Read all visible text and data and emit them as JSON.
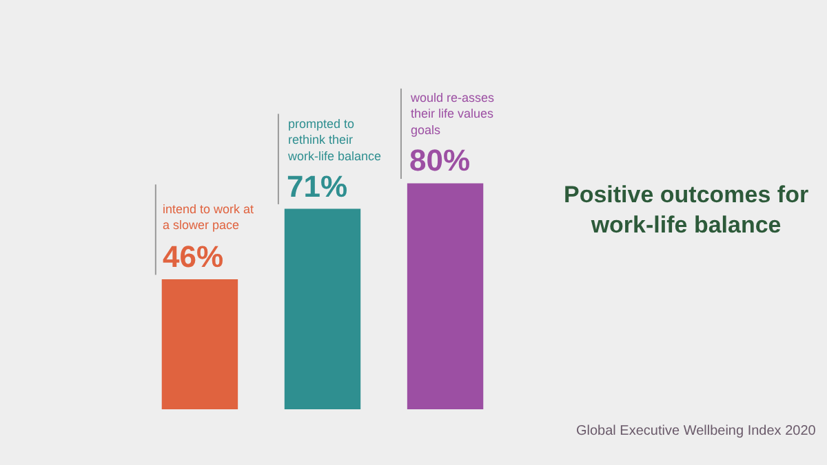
{
  "chart_data": {
    "type": "bar",
    "title": "Positive outcomes for work-life balance",
    "categories": [
      null,
      null,
      null
    ],
    "values": [
      46,
      71,
      80
    ],
    "colors": [
      "#e0633f",
      "#2f8f90",
      "#9c4fa3"
    ],
    "value_labels": [
      "46%",
      "71%",
      "80%"
    ],
    "annotations": [
      "intend to work at a slower pace",
      "prompted to rethink their work-life balance",
      "would re-asses their life values goals",
      "Global Executive Wellbeing Index 2020"
    ],
    "tick_labels": false,
    "grid": false,
    "legend": false
  }
}
